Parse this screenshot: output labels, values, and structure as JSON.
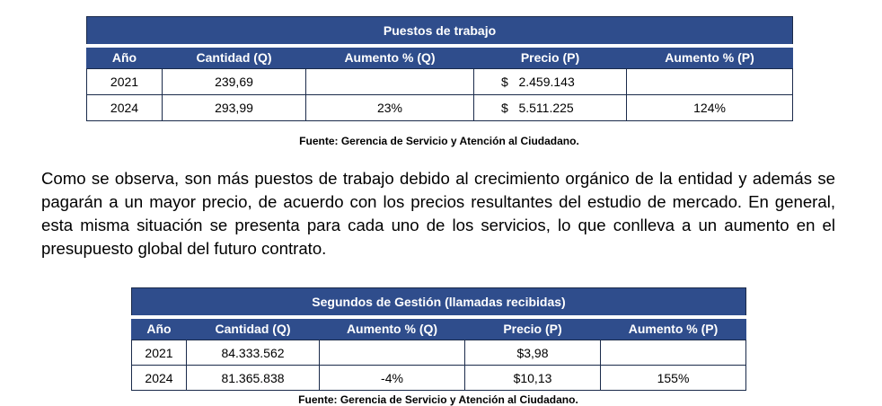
{
  "tables": [
    {
      "title": "Puestos de trabajo",
      "headers": [
        "Año",
        "Cantidad (Q)",
        "Aumento % (Q)",
        "Precio (P)",
        "Aumento % (P)"
      ],
      "rows": [
        [
          "2021",
          "239,69",
          null,
          "$   2.459.143",
          null
        ],
        [
          "2024",
          "293,99",
          "23%",
          "$   5.511.225",
          "124%"
        ]
      ],
      "source": "Fuente: Gerencia de Servicio y Atención al Ciudadano."
    },
    {
      "title": "Segundos de Gestión (llamadas recibidas)",
      "headers": [
        "Año",
        "Cantidad (Q)",
        "Aumento % (Q)",
        "Precio (P)",
        "Aumento % (P)"
      ],
      "rows": [
        [
          "2021",
          "84.333.562",
          null,
          "$3,98",
          null
        ],
        [
          "2024",
          "81.365.838",
          "-4%",
          "$10,13",
          "155%"
        ]
      ],
      "source": "Fuente: Gerencia de Servicio y Atención al Ciudadano."
    }
  ],
  "paragraph": "Como se observa, son más puestos de trabajo debido al crecimiento orgánico de la entidad y además se pagarán a un mayor precio, de acuerdo con los precios resultantes del estudio de mercado. En general, esta misma situación se presenta para cada uno de los servicios, lo que conlleva a un aumento en el presupuesto global del futuro contrato."
}
